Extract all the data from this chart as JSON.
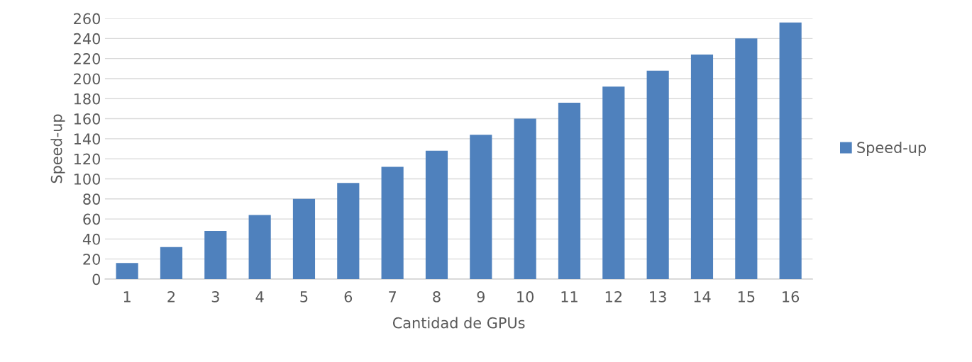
{
  "chart_data": {
    "type": "bar",
    "xlabel": "Cantidad de GPUs",
    "ylabel": "Speed-up",
    "categories": [
      "1",
      "2",
      "3",
      "4",
      "5",
      "6",
      "7",
      "8",
      "9",
      "10",
      "11",
      "12",
      "13",
      "14",
      "15",
      "16"
    ],
    "series": [
      {
        "name": "Speed-up",
        "color": "#4f81bd",
        "values": [
          16,
          32,
          48,
          64,
          80,
          96,
          112,
          128,
          144,
          160,
          176,
          192,
          208,
          224,
          240,
          256
        ]
      }
    ],
    "ylim": [
      0,
      260
    ],
    "yticks": [
      0,
      20,
      40,
      60,
      80,
      100,
      120,
      140,
      160,
      180,
      200,
      220,
      240,
      260
    ],
    "grid": "y",
    "legend": "right"
  }
}
